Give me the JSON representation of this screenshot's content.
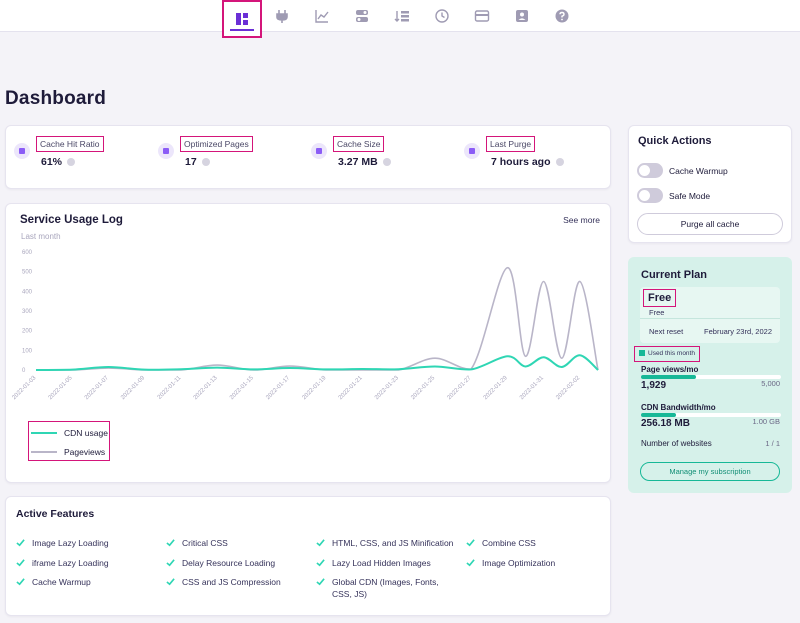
{
  "nav": {
    "items": [
      {
        "name": "dashboard-icon",
        "active": true
      },
      {
        "name": "plug-icon",
        "active": false
      },
      {
        "name": "chart-icon",
        "active": false
      },
      {
        "name": "toggles-icon",
        "active": false
      },
      {
        "name": "sort-list-icon",
        "active": false
      },
      {
        "name": "history-icon",
        "active": false
      },
      {
        "name": "credit-card-icon",
        "active": false
      },
      {
        "name": "user-icon",
        "active": false
      },
      {
        "name": "help-icon",
        "active": false
      }
    ],
    "accent": "#6b2fd6",
    "highlight": "#d4157a"
  },
  "page": {
    "title": "Dashboard"
  },
  "stats": [
    {
      "label": "Cache Hit Ratio",
      "value": "61%"
    },
    {
      "label": "Optimized Pages",
      "value": "17"
    },
    {
      "label": "Cache Size",
      "value": "3.27 MB"
    },
    {
      "label": "Last Purge",
      "value": "7 hours ago"
    }
  ],
  "usage": {
    "title": "Service Usage Log",
    "subtitle": "Last month",
    "see_more": "See more"
  },
  "chart_data": {
    "type": "line",
    "ylim": [
      0,
      600
    ],
    "yticks": [
      "0",
      "100",
      "200",
      "300",
      "400",
      "500",
      "600"
    ],
    "x_tick_labels": [
      "2022-01-03",
      "2022-01-05",
      "2022-01-07",
      "2022-01-09",
      "2022-01-11",
      "2022-01-13",
      "2022-01-15",
      "2022-01-17",
      "2022-01-19",
      "2022-01-21",
      "2022-01-23",
      "2022-01-25",
      "2022-01-27",
      "2022-01-29",
      "2022-01-31",
      "2022-02-02"
    ],
    "x_tick_days": [
      0,
      2,
      4,
      6,
      8,
      10,
      12,
      14,
      16,
      18,
      20,
      22,
      24,
      26,
      28,
      30
    ],
    "series": [
      {
        "name": "CDN usage",
        "color": "#2fd6b4",
        "values": [
          [
            0,
            0
          ],
          [
            2,
            2
          ],
          [
            4,
            15
          ],
          [
            6,
            2
          ],
          [
            8,
            4
          ],
          [
            10,
            12
          ],
          [
            12,
            3
          ],
          [
            14,
            10
          ],
          [
            16,
            3
          ],
          [
            18,
            5
          ],
          [
            20,
            4
          ],
          [
            22,
            18
          ],
          [
            24,
            3
          ],
          [
            26,
            70
          ],
          [
            27,
            18
          ],
          [
            28,
            65
          ],
          [
            29,
            15
          ],
          [
            30,
            75
          ],
          [
            31,
            0
          ]
        ]
      },
      {
        "name": "Pageviews",
        "color": "#b9b5c8",
        "values": [
          [
            0,
            0
          ],
          [
            2,
            0
          ],
          [
            4,
            10
          ],
          [
            6,
            0
          ],
          [
            8,
            0
          ],
          [
            10,
            25
          ],
          [
            12,
            0
          ],
          [
            14,
            20
          ],
          [
            16,
            0
          ],
          [
            18,
            0
          ],
          [
            20,
            0
          ],
          [
            22,
            60
          ],
          [
            24,
            5
          ],
          [
            26,
            520
          ],
          [
            27,
            70
          ],
          [
            28,
            450
          ],
          [
            29,
            60
          ],
          [
            30,
            450
          ],
          [
            31,
            0
          ]
        ]
      }
    ],
    "legend_position": "bottom-left",
    "grid": false
  },
  "features": {
    "title": "Active Features",
    "items": [
      "Image Lazy Loading",
      "Critical CSS",
      "HTML, CSS, and JS Minification",
      "Combine CSS",
      "iframe Lazy Loading",
      "Delay Resource Loading",
      "Lazy Load Hidden Images",
      "Image Optimization",
      "Cache Warmup",
      "CSS and JS Compression",
      "Global CDN (Images, Fonts, CSS, JS)"
    ]
  },
  "quick": {
    "title": "Quick Actions",
    "toggles": [
      "Cache Warmup",
      "Safe Mode"
    ],
    "purge_button": "Purge all cache"
  },
  "plan": {
    "title": "Current Plan",
    "name": "Free",
    "sub": "Free",
    "next_reset_label": "Next reset",
    "next_reset_value": "February 23rd, 2022",
    "used_label": "Used this month",
    "pageviews_label": "Page views/mo",
    "pageviews_value": "1,929",
    "pageviews_limit": "5,000",
    "pageviews_fraction": 0.39,
    "bandwidth_label": "CDN Bandwidth/mo",
    "bandwidth_value": "256.18 MB",
    "bandwidth_limit": "1.00 GB",
    "bandwidth_fraction": 0.25,
    "websites_label": "Number of websites",
    "websites_value": "1 / 1",
    "manage_button": "Manage my subscription",
    "color": "#17b897"
  }
}
